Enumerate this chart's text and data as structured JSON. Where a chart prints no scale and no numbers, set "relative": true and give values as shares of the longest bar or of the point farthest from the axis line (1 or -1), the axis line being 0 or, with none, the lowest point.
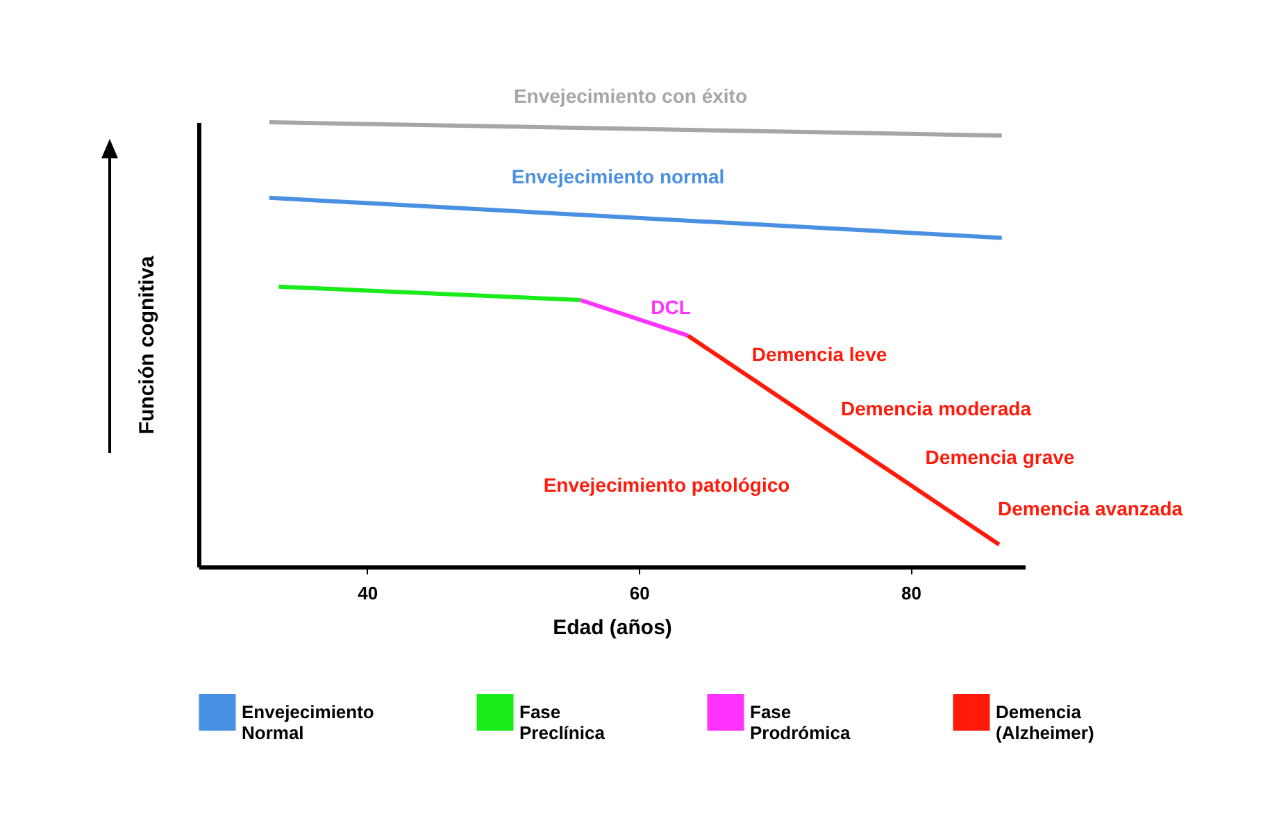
{
  "chart_data": {
    "type": "line",
    "relative": true,
    "xlabel": "Edad (años)",
    "ylabel": "Función cognitiva",
    "xlim": [
      27.6,
      88.4
    ],
    "xticks": [
      40,
      60,
      80
    ],
    "grid": false,
    "legend": "bottom",
    "series": [
      {
        "color": "#a6a6a6",
        "x": [
          32.8,
          86.7
        ],
        "values": [
          1.0,
          0.97
        ]
      },
      {
        "name": "Envejecimiento Normal",
        "color": "#4a90e2",
        "x": [
          32.8,
          86.7
        ],
        "values": [
          0.83,
          0.74
        ]
      },
      {
        "name": "Fase Preclínica",
        "color": "#1aeb1a",
        "x": [
          33.5,
          55.7
        ],
        "values": [
          0.63,
          0.6
        ]
      },
      {
        "name": "Fase Prodrómica",
        "color": "#ff33ff",
        "x": [
          55.7,
          63.6
        ],
        "values": [
          0.6,
          0.52
        ]
      },
      {
        "name": "Demencia (Alzheimer)",
        "color": "#ff1a0a",
        "x": [
          63.6,
          86.5
        ],
        "values": [
          0.52,
          0.05
        ]
      }
    ],
    "annotations": [
      "Envejecimiento con éxito",
      "Envejecimiento normal",
      "DCL",
      "Demencia leve",
      "Demencia moderada",
      "Demencia grave",
      "Demencia avanzada",
      "Envejecimiento patológico"
    ]
  }
}
